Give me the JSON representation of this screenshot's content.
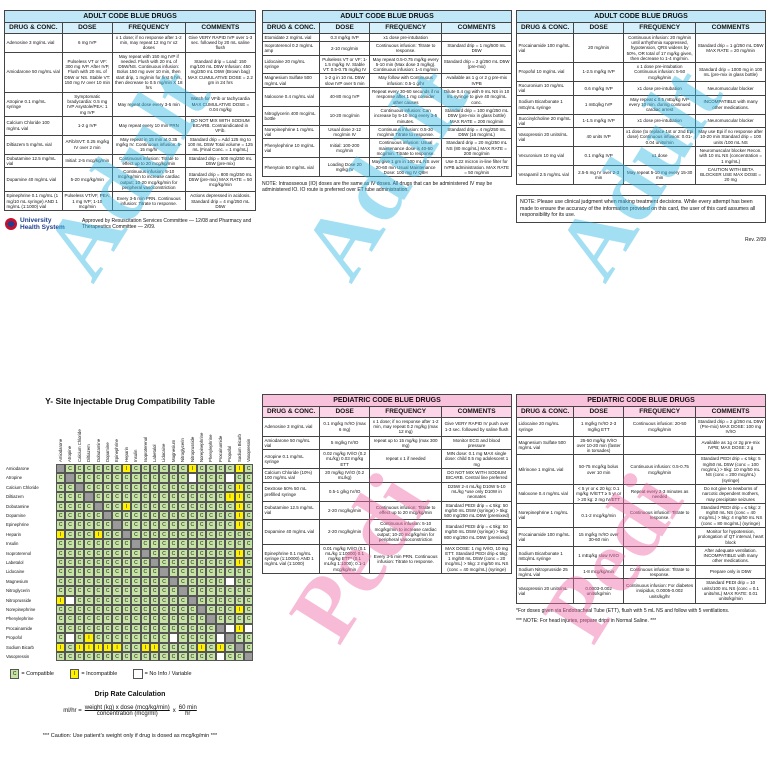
{
  "adult_panels": [
    {
      "title": "ADULT CODE BLUE DRUGS",
      "watermark": "Adult",
      "headers": [
        "DRUG & CONC.",
        "DOSE",
        "FREQUENCY",
        "COMMENTS"
      ],
      "rows": [
        [
          "Adenosine 3 mg/mL vial",
          "6 mg IVP",
          "x 1 dose; if no response after 1-2 min, may repeat 12 mg IV x2 doses",
          "Give VERY RAPID IVP over 1-3 sec. followed by 20 mL saline flush"
        ],
        [
          "Amiodarone 50 mg/mL vial",
          "Pulseless VT or VF: 300 mg IVP. After IVP, Flush with 20 mL of D5W or NS. Stable VT: 150 mg IV over 10 min",
          "May repeat with 150 mg IVP if needed. Flush with 20 mL of D5W/NS. Continuous infusion: Bolus 150 mg over 10 min, then start drip, 1 mg/min for first 6 hrs, then decrease to 0.5 mg/min X 18 hrs",
          "Standard drip = Load: 150 mg/100 mL D5W Infusion: 450 mg/250 mL D5W (Brown bag) MAX CUMULATIVE DOSE = 2.2 gm in 24 hrs"
        ],
        [
          "Atropine 0.1 mg/mL syringe",
          "Symptomatic bradycardia: 0.5 mg IVP Asystole/PEA: 1 mg IVP",
          "May repeat dose every 3-5 min",
          "Watch for VFib or tachycardia MAX CUMULATIVE DOSE = 0.04 mg/kg"
        ],
        [
          "Calcium Chloride 100 mg/mL vial",
          "1-2 g IVP",
          "May repeat every 10 min PRN",
          "DO NOT MIX WITH SODIUM BICARB. Contraindicated in VFib."
        ],
        [
          "Diltiazem 5 mg/mL vial",
          "AFib/SVT: 0.25 mg/kg IV over 2 min",
          "May repeat in 15 min at 0.35 mg/kg IV. Continuous infusion: 5-15 mg/hr",
          "Standard drip = Add 125 mg to 100 mL D5W Total volume = 125 mL (Final Conc. = 1 mg/mL)"
        ],
        [
          "Dobutamine 12.5 mg/mL vial",
          "Initial: 2-5 mcg/kg/min",
          "Continuous infusion: Titrate to effect up to 20 mcg/kg/min",
          "Standard drip = 500 mg/250 mL D5W (pre-mix)"
        ],
        [
          "Dopamine 40 mg/mL vial",
          "5-20 mcg/kg/min",
          "Continuous infusion: 5-10 mcg/kg/min to increase cardiac output; 10-20 mcg/kg/min for peripheral vasoconstriction",
          "Standard drip = 800 mg/250 mL D5W (pre-mix) MAX RATE = 50 mcg/kg/min"
        ],
        [
          "Epinephrine 0.1 mg/mL (1 mg/10 mL syringe) AND 1 mg/mL (1:1000) vial",
          "Pulseless VT/VF, PEA: 1 mg IVP; 1-10 mcg/min",
          "Every 3-5 min PRN. Continuous infusion: Titrate to response.",
          "Actions depressed in acidosis. Standard drip = 4 mg/250 mL D5W"
        ]
      ]
    },
    {
      "title": "ADULT CODE BLUE DRUGS",
      "watermark": "Adult",
      "headers": [
        "DRUG & CONC.",
        "DOSE",
        "FREQUENCY",
        "COMMENTS"
      ],
      "rows": [
        [
          "Etomidate 2 mg/mL vial",
          "0.3 mg/kg IVP",
          "x1 dose pre-intubation",
          null
        ],
        [
          "Isoproterenol 0.2 mg/mL amp",
          "2-10 mcg/min",
          "Continuous infusion: Titrate to response.",
          "Standard drip = 1 mg/500 mL D5W"
        ],
        [
          "Lidocaine 20 mg/mL syringe",
          "Pulseless VT or VF: 1-1.5 mg/kg IV. Stable VT: 0.5-0.75 mg/kg IV",
          "May repeat 0.5-0.75 mg/kg every 5-10 min (Max dose 3 mg/kg). Continuous infusion: 1-4 mg/min",
          "Standard drip = 2 g/250 mL D5W (pre-mix)"
        ],
        [
          "Magnesium Sulfate 500 mg/mL vial",
          "1-2 g in 10 mL D5W slow IVP over 5 min",
          "May follow with Continuous infusion: 0.5-1 g/hr",
          "Available as 1 g or 2 g pre-mix IVPB"
        ],
        [
          "Naloxone 0.4 mg/mL vial",
          "40-80 mcg IVP",
          "Repeat every 30-60 seconds if no response after 1 mg consider other causes",
          "Dilute 0.4 mg with 9 mL NS in 10 mL syringe to give 40 mcg/mL conc."
        ],
        [
          "Nitroglycerin 400 mcg/mL bottle",
          "10-20 mcg/min",
          "Continuous infusion: Can increase by 5-10 mcg every 3-5 minutes.",
          "Standard drip = 100 mg/250 mL D5W (pre-mix in glass bottle) MAX RATE = 200 mcg/min"
        ],
        [
          "Norepinephrine 1 mg/mL vial",
          "Usual dose 2-12 mcg/min IV",
          "Continuous infusion: 0.5-30 mcg/min Titrate to response.",
          "Standard drip = 4 mg/250 mL D5W (16 mcg/mL)"
        ],
        [
          "Phenylephrine 10 mg/mL vial",
          "Initial: 100-200 mcg/min",
          "Continuous infusion: Usual maintenance dose is 40-60 mcg/min. Titrate to response.",
          "Standard drip = 20 mg/250 mL NS (80 mcg/mL) MAX RATE = 200 mcg/min"
        ],
        [
          "Phenytoin 50 mg/mL vial",
          "Loading Dose 20 mg/kg IV",
          "May give 1 gm in 100 mL NS over 20-60 min Usual Maintenance Dose: 100 mg IV Q8H",
          "Use 0.22 micron in-line filter for IVPB administration. MAX RATE = 50 mg/min"
        ]
      ]
    },
    {
      "title": "ADULT CODE BLUE DRUGS",
      "watermark": "Adult",
      "headers": [
        "DRUG & CONC.",
        "DOSE",
        "FREQUENCY",
        "COMMENTS"
      ],
      "rows": [
        [
          "Procainamide 100 mg/mL vial",
          "20 mg/min",
          "Continuous infusion: 20 mg/min until arrhythmia suppressed, hypotension, QRS widens by 50%, OR total of 17 mg/kg given, then decrease to 1-4 mg/min.",
          "Standard drip = 1 g/250 mL D5W MAX RATE = 20 mg/min"
        ],
        [
          "Propofol 10 mg/mL vial",
          "1-2.5 mg/kg IVP",
          "x 1 dose pre-intubation Continuous infusion: 5-50 mcg/kg/min",
          "Standard drip = 1000 mg in 100 mL (pre-mix in glass bottle)"
        ],
        [
          "Rocuronium 10 mg/mL vial",
          "0.6 mg/kg IVP",
          "x1 dose pre-intubation",
          "Neuromuscular blocker"
        ],
        [
          "Sodium Bicarbonate 1 mEq/mL syringe",
          "1 mEq/kg IVP",
          "May repeat ≤ 0.5 mEq/kg IVP every 10 min. during continued cardiac arrest",
          "INCOMPATIBLE with many other medications."
        ],
        [
          "Succinylcholine 20 mg/mL vial",
          "1-1.5 mg/kg IVP",
          "x1 dose pre-intubation",
          "Neuromuscular blocker"
        ],
        [
          "Vasopressin 20 units/mL vial",
          "40 units IVP",
          "x1 dose (to replace 1st or 2nd Epi dose) Continuous infusion: 0.01-0.04 units/min",
          "May use Epi if no response after 10-20 min Standard drip = 100 units /100 mL NS"
        ],
        [
          "Vecuronium 10 mg vial",
          "0.1 mg/kg IVP",
          "x1 dose",
          "Neuromuscular blocker Recon. with 10 mL NS (concentration = 1 mg/mL)"
        ],
        [
          "Verapamil 2.5 mg/mL vial",
          "2.5-5 mg IV over 2-3 min",
          "May repeat 5-10 mg every 15-30 min",
          "CAUTION WITH BETA BLOCKER USE MAX DOSE = 20 mg"
        ]
      ]
    }
  ],
  "adult_footer": {
    "logo": [
      "University",
      "Health System"
    ],
    "approval": "Approved by Resuscitation Services Committee — 12/08 and Pharmacy and Therapeutics Committee — 2/09."
  },
  "adult_note_io": "NOTE: Intraosseous (IO) doses are the same as IV doses. All drugs that can be administered IV may be administered IO. IO route is preferred over ET tube administration.",
  "adult_note_judgment": "NOTE: Please use clinical judgment when making treatment decisions. While every attempt has been made to ensure the accuracy of the information provided on this card, the user of this card assumes all responsibility for its use.",
  "revision": "Rev. 2/09",
  "ysite": {
    "title": "Y- Site Injectable Drug Compatibility Table",
    "drugs": [
      "Amiodarone",
      "Atropine",
      "Calcium Chloride",
      "Diltiazem",
      "Dobutamine",
      "Dopamine",
      "Epinephrine",
      "Heparin",
      "Insulin",
      "Isoproterenol",
      "Labetalol",
      "Lidocaine",
      "Magnesium",
      "Nitroglycerin",
      "Nitroprusside",
      "Norepinephrine",
      "Phenylephrine",
      "Procainamide",
      "Propofol",
      "Sodium Bicarb",
      "Vasopressin"
    ],
    "matrix": [
      [
        null,
        "C",
        "C",
        "C",
        "C",
        "C",
        "C",
        "I",
        "C",
        "C",
        "C",
        "C",
        "C",
        "C",
        "I",
        "C",
        "C",
        "C",
        "C",
        "I",
        "C"
      ],
      [
        "C",
        null,
        "C",
        "C",
        "C",
        "C",
        "C",
        "C",
        "C",
        "C",
        "C",
        "C",
        "C",
        "C",
        null,
        "C",
        "C",
        "C",
        null,
        "C",
        "C"
      ],
      [
        "C",
        "C",
        null,
        "C",
        "C",
        "C",
        "C",
        "C",
        "C",
        "C",
        "C",
        "C",
        "C",
        "C",
        "C",
        "C",
        "C",
        "C",
        "C",
        "I",
        "C"
      ],
      [
        "C",
        "C",
        "C",
        null,
        "C",
        "C",
        "C",
        "C",
        "C",
        "C",
        "C",
        "C",
        "C",
        "C",
        "C",
        "C",
        "C",
        "C",
        "I",
        "I",
        "C"
      ],
      [
        "C",
        "C",
        "C",
        "C",
        null,
        "C",
        "C",
        "I",
        "C",
        "C",
        "C",
        "C",
        "C",
        "C",
        "C",
        "C",
        "C",
        "C",
        "C",
        "I",
        "C"
      ],
      [
        "C",
        "C",
        "C",
        "C",
        "C",
        null,
        "C",
        "C",
        "C",
        "C",
        "C",
        "C",
        "C",
        "C",
        "C",
        "C",
        "C",
        "C",
        "C",
        "I",
        "C"
      ],
      [
        "C",
        "C",
        "C",
        "C",
        "C",
        "C",
        null,
        "C",
        "C",
        "C",
        "C",
        "C",
        "C",
        "C",
        "C",
        "C",
        "C",
        "C",
        "C",
        "I",
        "C"
      ],
      [
        "I",
        "C",
        "C",
        "C",
        "I",
        "C",
        "C",
        null,
        "C",
        "C",
        "C",
        "C",
        "C",
        "C",
        "C",
        "C",
        "C",
        "C",
        "C",
        "C",
        "C"
      ],
      [
        "C",
        "C",
        "C",
        "C",
        "C",
        "C",
        "C",
        "C",
        null,
        "C",
        "C",
        "C",
        "C",
        "C",
        "C",
        "C",
        "C",
        "C",
        "C",
        "C",
        "C"
      ],
      [
        "C",
        "C",
        "C",
        "C",
        "C",
        "C",
        "C",
        "C",
        "C",
        null,
        "C",
        "C",
        "C",
        "C",
        "C",
        "C",
        "C",
        "C",
        "C",
        "I",
        "C"
      ],
      [
        "C",
        "C",
        "C",
        "C",
        "C",
        "C",
        "C",
        "C",
        "C",
        "C",
        null,
        "C",
        "C",
        "C",
        "C",
        "C",
        "C",
        "C",
        "C",
        "I",
        "C"
      ],
      [
        "C",
        "C",
        "C",
        "C",
        "C",
        "C",
        "C",
        "C",
        "C",
        "C",
        "C",
        null,
        "C",
        "C",
        "C",
        "C",
        "C",
        "C",
        "C",
        "C",
        "C"
      ],
      [
        "C",
        "C",
        "C",
        "C",
        "C",
        "C",
        "C",
        "C",
        "C",
        "C",
        "C",
        "C",
        null,
        "C",
        "C",
        "C",
        "C",
        "C",
        null,
        "C",
        "C"
      ],
      [
        "C",
        "C",
        "C",
        "C",
        "C",
        "C",
        "C",
        "C",
        "C",
        "C",
        "C",
        "C",
        "C",
        null,
        "C",
        "C",
        "C",
        "C",
        "C",
        "C",
        "C"
      ],
      [
        "I",
        null,
        "C",
        "C",
        "C",
        "C",
        "C",
        "C",
        "C",
        "C",
        "C",
        "C",
        "C",
        "C",
        null,
        "C",
        "C",
        "C",
        "C",
        "C",
        "C"
      ],
      [
        "C",
        "C",
        "C",
        "C",
        "C",
        "C",
        "C",
        "C",
        "C",
        "C",
        "C",
        "C",
        "C",
        "C",
        "C",
        null,
        "C",
        "C",
        "C",
        "I",
        "C"
      ],
      [
        "C",
        "C",
        "C",
        "C",
        "C",
        "C",
        "C",
        "C",
        "C",
        "C",
        "C",
        "C",
        "C",
        "C",
        "C",
        "C",
        null,
        "C",
        "C",
        "C",
        "C"
      ],
      [
        "C",
        "C",
        "C",
        "C",
        "C",
        "C",
        "C",
        "C",
        "C",
        "C",
        "C",
        "C",
        "C",
        "C",
        "C",
        "C",
        "C",
        null,
        null,
        "I",
        null
      ],
      [
        "C",
        null,
        "C",
        "I",
        "C",
        "C",
        "C",
        "C",
        "C",
        "C",
        "C",
        "C",
        null,
        "C",
        "C",
        "C",
        "C",
        null,
        null,
        "C",
        "C"
      ],
      [
        "I",
        "C",
        "I",
        "I",
        "I",
        "I",
        "I",
        "C",
        "C",
        "I",
        "I",
        "C",
        "C",
        "C",
        "C",
        "I",
        "C",
        "I",
        "C",
        null,
        "C"
      ],
      [
        "C",
        "C",
        "C",
        "C",
        "C",
        "C",
        "C",
        "C",
        "C",
        "C",
        "C",
        "C",
        "C",
        "C",
        "C",
        "C",
        "C",
        null,
        "C",
        "C",
        null
      ]
    ],
    "legend": [
      {
        "code": "C",
        "label": "= Compatible"
      },
      {
        "code": "I",
        "label": "= Incompatible"
      },
      {
        "label": "= No Info / Variable"
      }
    ],
    "drip_title": "Drip Rate Calculation",
    "formula": {
      "lhs": "ml/hr =",
      "num1": "weight (kg) x dose (mcg/kg/min)",
      "den1": "concentration (mcg/ml)",
      "op": "x",
      "num2": "60 min",
      "den2": "hr"
    },
    "caution": "*** Caution: Use patient's weight only if drug is dosed as mcg/kg/min ***"
  },
  "pedi_panels": [
    {
      "title": "PEDIATRIC CODE BLUE DRUGS",
      "watermark": "Pedi",
      "headers": [
        "DRUG & CONC.",
        "DOSE",
        "FREQUENCY",
        "COMMENTS"
      ],
      "rows": [
        [
          "Adenosine 3 mg/mL vial",
          "0.1 mg/kg IV/IO (max 6 mg)",
          "x 1 dose; if no response after 1-2 min, may repeat 0.2 mg/kg (max 12 mg)",
          "Give VERY RAPID IV push over 1-3 sec. followed by saline flush"
        ],
        [
          "Amiodarone 50 mg/mL vial",
          "5 mg/kg IV/IO",
          "repeat up to 15 mg/kg (max 300 mg)",
          "Monitor ECG and blood pressure"
        ],
        [
          "Atropine 0.1 mg/mL syringe",
          "0.02 mg/kg IV/IO (0.2 mL/kg) 0.03 mg/kg ETT",
          "repeat x 1 if needed",
          "MIN dose: 0.1 mg MAX single dose: child 0.5 mg adolescent 1 mg"
        ],
        [
          "Calcium Chloride (10%) 100 mg/mL vial",
          "20 mg/kg IV/IO (0.2 mL/kg)",
          null,
          "DO NOT MIX WITH SODIUM BICARB. Central line preferred"
        ],
        [
          "Dextrose 50% 50 mL prefilled syringe",
          "0.5-1 g/kg IV/IO",
          null,
          "D25W 2-4 mL/kg D10W 5-10 mL/kg *use only D10W in neonates"
        ],
        [
          "Dobutamine 12.5 mg/mL vial",
          "2-20 mcg/kg/min",
          "Continuous infusion: Titrate to effect up to 20 mcg/kg/min",
          "Standard PEDI drip = ≤ 5kg: 50 mg/50 mL D5W (syringe) > 5kg: 500 mg/250 mL D5W (premixed)"
        ],
        [
          "Dopamine 40 mg/mL vial",
          "2-20 mcg/kg/min",
          "Continuous infusion: 5-10 mcg/kg/min to increase cardiac output; 10-20 mcg/kg/min for peripheral vasoconstriction",
          "Standard PEDI drip = ≤ 5kg: 50 mg/50 mL D5W (syringe) > 5kg: 800 mg/250 mL D5W (premixed)"
        ],
        [
          "Epinephrine 0.1 mg/mL syringe (1:10000) AND 1 mg/mL vial (1:1000)",
          "0.01 mg/kg IV/IO (0.1 mL/kg 1:10000) 0.1 mg/kg ETT* (0.1 mL/kg 1:1000); 0.1-1 mcg/kg/min",
          "Every 3-5 min PRN. Continuous infusion: Titrate to response.",
          "MAX DOSE: 1 mg IV/IO, 10 mg ETT. Standard PEDI drip ≤ 5kg: 1 mg/50 mL D5W (conc = 20 mcg/mL) > 5kg: 2 mg/50 mL NS (conc = 40 mcg/mL) (syringe)"
        ]
      ]
    },
    {
      "title": "PEDIATRIC CODE BLUE DRUGS",
      "watermark": "Pedi",
      "headers": [
        "DRUG & CONC.",
        "DOSE",
        "FREQUENCY",
        "COMMENTS"
      ],
      "rows": [
        [
          "Lidocaine 20 mg/mL syringe",
          "1 mg/kg IV/IO 2-3 mg/kg ETT",
          "Continuous infusion: 20-50 mcg/kg/min",
          "Standard drip = 2 g/250 mL D5W (Pre-mix) MAX DOSE: 100 mg IV/IO"
        ],
        [
          "Magnesium Sulfate 500 mg/mL vial",
          "25-50 mg/kg IV/IO over 10-20 min (faster in torsades)",
          null,
          "Available as 1g or 2g pre-mix IVPB; MAX DOSE: 2 g"
        ],
        [
          "Milrinone 1 mg/mL vial",
          "50-75 mcg/kg bolus over 10 min",
          "Continuous infusion: 0.5-0.75 mcg/kg/min",
          "Standard PEDI drip = ≤ 5kg: 5 mg/50 mL D5W (conc = 100 mcg/mL) > 5kg: 10 mg/50 mL NS (conc = 200 mcg/mL) (syringe)"
        ],
        [
          "Naloxone 0.4 mg/mL vial",
          "< 5 yr or ≤ 20 kg: 0.1 mg/kg IV/ETT ≥ 5 yr or > 20 kg: 2 mg IV/ETT",
          "Repeat every 2-3 minutes as needed",
          "Do not give to newborns of narcotic dependent mothers, may precipitate seizures"
        ],
        [
          "Norepinephrine 1 mg/mL vial",
          "0.1-2 mcg/kg/min",
          "Continuous infusion: Titrate to response.",
          "Standard PEDI drip = ≤ 5kg: 2 mg/50 mL NS (conc = 40 mcg/mL) > 5kg: 4 mg/50 mL NS (conc = 80 mcg/mL) (syringe)"
        ],
        [
          "Procainamide 100 mg/mL vial",
          "15 mg/kg IV/IO over 30-60 min",
          null,
          "Monitor for hypotension, prolongation of QT interval, heart block"
        ],
        [
          "Sodium Bicarbonate 1 mEq/mL syringe",
          "1 mEq/kg slow IV/IO",
          null,
          "After adequate ventilation. INCOMPATIBLE with many other medications."
        ],
        [
          "Sodium Nitroprusside 25 mg/mL vial",
          "1-8 mcg/kg/min",
          "Continuous infusion: Titrate to response.",
          "Prepare only in D5W"
        ],
        [
          "Vasopressin 20 units/mL vial",
          "0.0003-0.002 units/kg/min",
          "Continuous infusion: For diabetes insipidus, 0.0005-0.002 units/kg/hr",
          "Standard PEDI drip = 10 units/100 mL NS (conc = 0.1 units/mL) MAX RATE: 0.01 units/kg/min"
        ]
      ]
    }
  ],
  "pedi_footnotes": [
    "*For doses given via Endotracheal Tube (ETT), flush with 5 mL NS and follow with 5 ventilations.",
    "*** NOTE: For head injuries, prepare drips in Normal Saline. ***"
  ]
}
